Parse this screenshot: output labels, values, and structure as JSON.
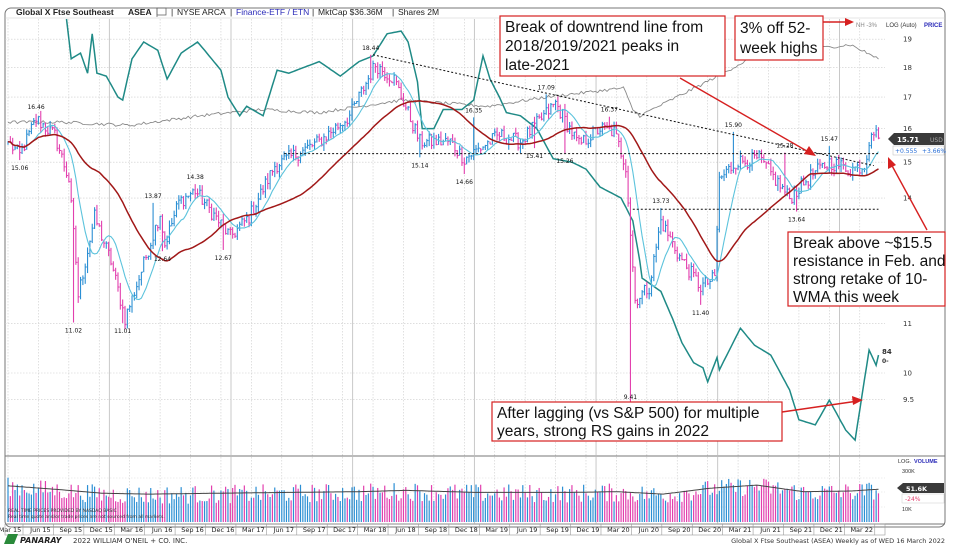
{
  "header": {
    "name": "Global X Ftse Southeast",
    "symbol": "ASEA",
    "exchange": "NYSE ARCA",
    "group": "Finance-ETF / ETN",
    "mktcap": "MktCap  $36.36M",
    "shares": "Shares  2M"
  },
  "right_axis": {
    "nh_label": "NH -3%",
    "scale_label": "LOG (Auto)",
    "price_label": "PRICE",
    "last_price": "15.71",
    "currency": "USD",
    "change": "+0.555",
    "change_pct": "+3.66%",
    "rs_rating": "84",
    "rs_suffix": "0-",
    "volume_scale": "LOG.",
    "volume_label": "VOLUME",
    "vol_300k": "300K",
    "vol_10k": "10K",
    "vol_last": "51.6K",
    "vol_pct": "-24%"
  },
  "annotations": [
    {
      "lines": [
        "Break of downtrend line from",
        "2018/2019/2021 peaks in",
        "late-2021"
      ]
    },
    {
      "lines": [
        "3% off 52-",
        "week highs"
      ]
    },
    {
      "lines": [
        "Break above ~$15.5",
        "resistance in Feb. and",
        "strong retake of 10-",
        "WMA this week"
      ]
    },
    {
      "lines": [
        "After lagging (vs S&P 500) for multiple",
        "years, strong RS gains in 2022"
      ]
    }
  ],
  "disclaimer": [
    "REAL TIME PRICES PROVIDED BY NASDAQ BASIC",
    "Real time quote and/or trade prices are not sourced from all markets."
  ],
  "footer": {
    "brand": "PANARAY",
    "copyright": "2022 WILLIAM O'NEIL + CO. INC.",
    "caption": "Global X Ftse Southeast (ASEA) Weekly as of WED 16 March 2022"
  },
  "colors": {
    "up": "#2b8fd4",
    "down": "#e23fae",
    "ma10": "#5cc3dc",
    "ma40": "#a11818",
    "rs": "#1f8a86",
    "bench": "#8a8a8a",
    "annot": "#d62020",
    "accent": "#2a2ab8"
  },
  "chart_data": {
    "type": "ohlc-weekly",
    "title": "Global X Ftse Southeast (ASEA) Weekly",
    "yscale": "log",
    "ylim": [
      8.6,
      20.2
    ],
    "total_weeks": 372,
    "y_ticks": [
      "19",
      "18",
      "17",
      "16",
      "15",
      "14",
      "11",
      "10",
      "9.5"
    ],
    "x_labels": [
      "Mar 15",
      "Jun 15",
      "Sep 15",
      "Dec 15",
      "Mar 16",
      "Jun 16",
      "Sep 16",
      "Dec 16",
      "Mar 17",
      "Jun 17",
      "Sep 17",
      "Dec 17",
      "Mar 18",
      "Jun 18",
      "Sep 18",
      "Dec 18",
      "Mar 19",
      "Jun 19",
      "Sep 19",
      "Dec 19",
      "Mar 20",
      "Jun 20",
      "Sep 20",
      "Dec 20",
      "Mar 21",
      "Jun 21",
      "Sep 21",
      "Dec 21",
      "Mar 22"
    ],
    "close_anchors": [
      [
        0,
        15.6
      ],
      [
        5,
        15.2
      ],
      [
        12,
        16.3
      ],
      [
        20,
        15.8
      ],
      [
        26,
        14.5
      ],
      [
        29,
        12.4
      ],
      [
        30,
        11.6
      ],
      [
        37,
        13.5
      ],
      [
        44,
        12.4
      ],
      [
        50,
        11.1
      ],
      [
        56,
        12.0
      ],
      [
        65,
        13.6
      ],
      [
        67,
        12.8
      ],
      [
        73,
        13.9
      ],
      [
        80,
        14.2
      ],
      [
        95,
        13.0
      ],
      [
        103,
        13.5
      ],
      [
        114,
        14.9
      ],
      [
        133,
        15.6
      ],
      [
        146,
        16.4
      ],
      [
        157,
        18.1
      ],
      [
        165,
        17.6
      ],
      [
        176,
        15.6
      ],
      [
        189,
        15.6
      ],
      [
        195,
        15.1
      ],
      [
        210,
        15.8
      ],
      [
        219,
        15.6
      ],
      [
        234,
        16.8
      ],
      [
        244,
        15.5
      ],
      [
        253,
        16.0
      ],
      [
        259,
        15.9
      ],
      [
        264,
        14.9
      ],
      [
        268,
        11.5
      ],
      [
        274,
        11.8
      ],
      [
        279,
        13.4
      ],
      [
        287,
        12.5
      ],
      [
        296,
        11.8
      ],
      [
        302,
        12.0
      ],
      [
        304,
        14.5
      ],
      [
        311,
        15.0
      ],
      [
        321,
        15.1
      ],
      [
        334,
        14.0
      ],
      [
        343,
        14.6
      ],
      [
        351,
        15.0
      ],
      [
        360,
        14.8
      ],
      [
        366,
        14.9
      ],
      [
        369,
        16.0
      ],
      [
        372,
        15.71
      ]
    ],
    "rs_line": [
      [
        25,
        19.8
      ],
      [
        27,
        18.3
      ],
      [
        31,
        18.5
      ],
      [
        34,
        17.8
      ],
      [
        36,
        19.2
      ],
      [
        38,
        17.8
      ],
      [
        42,
        17.7
      ],
      [
        47,
        17.0
      ],
      [
        49,
        16.9
      ],
      [
        53,
        18.3
      ],
      [
        58,
        18.9
      ],
      [
        64,
        18.6
      ],
      [
        68,
        17.6
      ],
      [
        74,
        18.5
      ],
      [
        81,
        18.9
      ],
      [
        85,
        18.5
      ],
      [
        91,
        17.9
      ],
      [
        94,
        17.0
      ],
      [
        99,
        16.4
      ],
      [
        102,
        16.7
      ],
      [
        109,
        16.4
      ],
      [
        115,
        17.9
      ],
      [
        120,
        17.8
      ],
      [
        133,
        18.2
      ],
      [
        142,
        17.7
      ],
      [
        150,
        18.2
      ],
      [
        156,
        18.4
      ],
      [
        162,
        19.2
      ],
      [
        168,
        19.3
      ],
      [
        171,
        18.9
      ],
      [
        175,
        17.5
      ],
      [
        177,
        16.0
      ],
      [
        182,
        16.0
      ],
      [
        186,
        16.6
      ],
      [
        194,
        16.6
      ],
      [
        199,
        16.9
      ],
      [
        203,
        18.4
      ],
      [
        206,
        17.6
      ],
      [
        210,
        17.0
      ],
      [
        213,
        16.5
      ],
      [
        219,
        16.4
      ],
      [
        226,
        16.0
      ],
      [
        233,
        15.1
      ],
      [
        241,
        15.0
      ],
      [
        247,
        14.8
      ],
      [
        253,
        14.3
      ],
      [
        262,
        14.0
      ],
      [
        267,
        13.4
      ],
      [
        270,
        12.4
      ],
      [
        271,
        12.0
      ],
      [
        279,
        11.7
      ],
      [
        284,
        11.1
      ],
      [
        288,
        10.6
      ],
      [
        293,
        10.2
      ],
      [
        297,
        10.1
      ],
      [
        299,
        9.83
      ],
      [
        303,
        10.3
      ],
      [
        304,
        10.06
      ],
      [
        313,
        10.9
      ],
      [
        319,
        10.55
      ],
      [
        326,
        10.35
      ],
      [
        334,
        9.68
      ],
      [
        338,
        9.14
      ],
      [
        345,
        9.05
      ],
      [
        351,
        9.49
      ],
      [
        358,
        8.96
      ],
      [
        362,
        8.79
      ],
      [
        365,
        9.59
      ],
      [
        368,
        10.45
      ],
      [
        371,
        10.15
      ],
      [
        372,
        10.35
      ]
    ],
    "benchmark_line": [
      [
        0,
        16.2
      ],
      [
        23,
        16.2
      ],
      [
        52,
        16.1
      ],
      [
        82,
        16.4
      ],
      [
        108,
        16.6
      ],
      [
        133,
        16.5
      ],
      [
        168,
        16.9
      ],
      [
        205,
        16.7
      ],
      [
        230,
        17.0
      ],
      [
        263,
        17.3
      ],
      [
        267,
        16.6
      ],
      [
        270,
        16.4
      ],
      [
        296,
        17.4
      ],
      [
        317,
        18.3
      ],
      [
        338,
        18.6
      ],
      [
        360,
        18.8
      ],
      [
        372,
        18.3
      ]
    ],
    "moving_averages": [
      {
        "name": "10-week",
        "period": 10
      },
      {
        "name": "40-week",
        "period": 40
      }
    ],
    "price_labels": [
      {
        "text": "16.46",
        "week": 12,
        "price": 16.46,
        "pos": "above"
      },
      {
        "text": "15.06",
        "week": 5,
        "price": 15.06,
        "pos": "below"
      },
      {
        "text": "11.02",
        "week": 28,
        "price": 11.02,
        "pos": "below"
      },
      {
        "text": "11.01",
        "week": 49,
        "price": 11.01,
        "pos": "below"
      },
      {
        "text": "13.87",
        "week": 62,
        "price": 13.87,
        "pos": "above"
      },
      {
        "text": "12.64",
        "week": 66,
        "price": 12.64,
        "pos": "below"
      },
      {
        "text": "14.38",
        "week": 80,
        "price": 14.38,
        "pos": "above"
      },
      {
        "text": "12.67",
        "week": 92,
        "price": 12.67,
        "pos": "below"
      },
      {
        "text": "18.44",
        "week": 155,
        "price": 18.44,
        "pos": "above"
      },
      {
        "text": "15.14",
        "week": 176,
        "price": 15.14,
        "pos": "below"
      },
      {
        "text": "14.66",
        "week": 195,
        "price": 14.66,
        "pos": "below"
      },
      {
        "text": "16.35",
        "week": 199,
        "price": 16.35,
        "pos": "above"
      },
      {
        "text": "15.41",
        "week": 225,
        "price": 15.41,
        "pos": "below"
      },
      {
        "text": "17.09",
        "week": 230,
        "price": 17.09,
        "pos": "above"
      },
      {
        "text": "15.26",
        "week": 238,
        "price": 15.26,
        "pos": "below"
      },
      {
        "text": "16.37",
        "week": 257,
        "price": 16.37,
        "pos": "above"
      },
      {
        "text": "9.41",
        "week": 266,
        "price": 9.41,
        "pos": "below"
      },
      {
        "text": "13.73",
        "week": 279,
        "price": 13.73,
        "pos": "above"
      },
      {
        "text": "11.40",
        "week": 296,
        "price": 11.4,
        "pos": "below"
      },
      {
        "text": "15.90",
        "week": 310,
        "price": 15.9,
        "pos": "above"
      },
      {
        "text": "15.28",
        "week": 332,
        "price": 15.28,
        "pos": "above"
      },
      {
        "text": "13.64",
        "week": 337,
        "price": 13.64,
        "pos": "below"
      },
      {
        "text": "15.47",
        "week": 351,
        "price": 15.47,
        "pos": "above"
      }
    ],
    "trend_lines": [
      {
        "name": "downtrend",
        "from": [
          156,
          18.44
        ],
        "to": [
          370,
          14.9
        ]
      },
      {
        "name": "resistance",
        "from": [
          118,
          15.25
        ],
        "to": [
          372,
          15.25
        ]
      },
      {
        "name": "support",
        "from": [
          267,
          13.7
        ],
        "to": [
          372,
          13.7
        ]
      }
    ],
    "volume": {
      "scale": "log",
      "unit": "K",
      "avg_anchors": [
        [
          0,
          120
        ],
        [
          20,
          80
        ],
        [
          40,
          50
        ],
        [
          60,
          45
        ],
        [
          90,
          50
        ],
        [
          120,
          55
        ],
        [
          150,
          60
        ],
        [
          170,
          70
        ],
        [
          200,
          55
        ],
        [
          240,
          55
        ],
        [
          260,
          60
        ],
        [
          280,
          45
        ],
        [
          300,
          90
        ],
        [
          320,
          130
        ],
        [
          340,
          60
        ],
        [
          360,
          65
        ],
        [
          372,
          80
        ]
      ],
      "last": 51.6,
      "pct_vs_avg": -24
    }
  }
}
